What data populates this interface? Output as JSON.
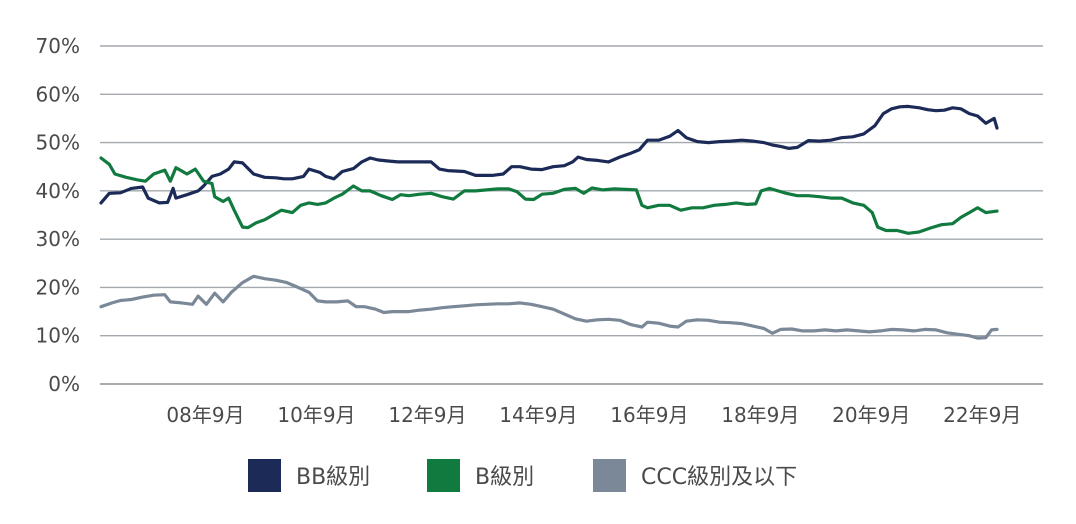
{
  "chart_data": {
    "type": "line",
    "title": "",
    "xlabel": "",
    "ylabel": "",
    "ylim": [
      0,
      70
    ],
    "xlim": [
      2006.75,
      2022.9
    ],
    "y_ticks": [
      "0%",
      "10%",
      "20%",
      "30%",
      "40%",
      "50%",
      "60%",
      "70%"
    ],
    "x_ticks": [
      {
        "label": "08年9月",
        "x": 2008.67
      },
      {
        "label": "10年9月",
        "x": 2010.67
      },
      {
        "label": "12年9月",
        "x": 2012.67
      },
      {
        "label": "14年9月",
        "x": 2014.67
      },
      {
        "label": "16年9月",
        "x": 2016.67
      },
      {
        "label": "18年9月",
        "x": 2018.67
      },
      {
        "label": "20年9月",
        "x": 2020.67
      },
      {
        "label": "22年9月",
        "x": 2022.67
      }
    ],
    "grid": true,
    "legend_position": "bottom",
    "series": [
      {
        "name": "BB級別",
        "color": "#1b2a56",
        "points": [
          [
            2006.75,
            37.5
          ],
          [
            2006.9,
            39.5
          ],
          [
            2007.1,
            39.6
          ],
          [
            2007.3,
            40.5
          ],
          [
            2007.5,
            40.8
          ],
          [
            2007.6,
            38.5
          ],
          [
            2007.8,
            37.5
          ],
          [
            2007.95,
            37.6
          ],
          [
            2008.05,
            40.5
          ],
          [
            2008.1,
            38.5
          ],
          [
            2008.3,
            39.2
          ],
          [
            2008.5,
            40
          ],
          [
            2008.6,
            41
          ],
          [
            2008.75,
            43
          ],
          [
            2008.9,
            43.5
          ],
          [
            2009.05,
            44.5
          ],
          [
            2009.15,
            46
          ],
          [
            2009.3,
            45.8
          ],
          [
            2009.5,
            43.5
          ],
          [
            2009.7,
            42.8
          ],
          [
            2009.9,
            42.7
          ],
          [
            2010.05,
            42.5
          ],
          [
            2010.2,
            42.5
          ],
          [
            2010.4,
            43
          ],
          [
            2010.5,
            44.5
          ],
          [
            2010.7,
            43.8
          ],
          [
            2010.8,
            43
          ],
          [
            2010.95,
            42.5
          ],
          [
            2011.1,
            44
          ],
          [
            2011.3,
            44.6
          ],
          [
            2011.45,
            46
          ],
          [
            2011.6,
            46.8
          ],
          [
            2011.75,
            46.4
          ],
          [
            2011.9,
            46.2
          ],
          [
            2012.1,
            46
          ],
          [
            2012.3,
            46
          ],
          [
            2012.5,
            46
          ],
          [
            2012.7,
            46
          ],
          [
            2012.85,
            44.5
          ],
          [
            2013.0,
            44.2
          ],
          [
            2013.3,
            44
          ],
          [
            2013.5,
            43.2
          ],
          [
            2013.8,
            43.2
          ],
          [
            2014.0,
            43.5
          ],
          [
            2014.15,
            45
          ],
          [
            2014.3,
            45
          ],
          [
            2014.5,
            44.5
          ],
          [
            2014.7,
            44.4
          ],
          [
            2014.9,
            45
          ],
          [
            2015.1,
            45.2
          ],
          [
            2015.25,
            46
          ],
          [
            2015.35,
            47
          ],
          [
            2015.5,
            46.5
          ],
          [
            2015.7,
            46.3
          ],
          [
            2015.9,
            46
          ],
          [
            2016.1,
            47
          ],
          [
            2016.3,
            47.8
          ],
          [
            2016.45,
            48.5
          ],
          [
            2016.6,
            50.5
          ],
          [
            2016.8,
            50.5
          ],
          [
            2017.0,
            51.3
          ],
          [
            2017.15,
            52.5
          ],
          [
            2017.3,
            51
          ],
          [
            2017.5,
            50.2
          ],
          [
            2017.7,
            50
          ],
          [
            2017.9,
            50.2
          ],
          [
            2018.1,
            50.3
          ],
          [
            2018.3,
            50.5
          ],
          [
            2018.5,
            50.3
          ],
          [
            2018.7,
            50
          ],
          [
            2018.85,
            49.5
          ],
          [
            2019.0,
            49.2
          ],
          [
            2019.15,
            48.8
          ],
          [
            2019.3,
            49
          ],
          [
            2019.5,
            50.4
          ],
          [
            2019.7,
            50.3
          ],
          [
            2019.9,
            50.5
          ],
          [
            2020.1,
            51
          ],
          [
            2020.3,
            51.2
          ],
          [
            2020.5,
            51.8
          ],
          [
            2020.7,
            53.5
          ],
          [
            2020.85,
            56
          ],
          [
            2021.0,
            57
          ],
          [
            2021.15,
            57.4
          ],
          [
            2021.3,
            57.5
          ],
          [
            2021.5,
            57.2
          ],
          [
            2021.65,
            56.8
          ],
          [
            2021.8,
            56.6
          ],
          [
            2021.95,
            56.7
          ],
          [
            2022.1,
            57.2
          ],
          [
            2022.25,
            57
          ],
          [
            2022.4,
            56
          ],
          [
            2022.55,
            55.5
          ],
          [
            2022.7,
            54
          ],
          [
            2022.85,
            55
          ],
          [
            2022.9,
            53
          ]
        ]
      },
      {
        "name": "B級別",
        "color": "#117a3e",
        "points": [
          [
            2006.75,
            46.8
          ],
          [
            2006.9,
            45.5
          ],
          [
            2007.0,
            43.5
          ],
          [
            2007.2,
            42.8
          ],
          [
            2007.4,
            42.3
          ],
          [
            2007.55,
            42
          ],
          [
            2007.7,
            43.5
          ],
          [
            2007.9,
            44.3
          ],
          [
            2008.0,
            42
          ],
          [
            2008.1,
            44.8
          ],
          [
            2008.3,
            43.5
          ],
          [
            2008.45,
            44.5
          ],
          [
            2008.6,
            42
          ],
          [
            2008.75,
            41.5
          ],
          [
            2008.8,
            38.8
          ],
          [
            2008.95,
            37.8
          ],
          [
            2009.05,
            38.5
          ],
          [
            2009.15,
            36
          ],
          [
            2009.3,
            32.5
          ],
          [
            2009.4,
            32.4
          ],
          [
            2009.55,
            33.4
          ],
          [
            2009.7,
            34
          ],
          [
            2009.85,
            35
          ],
          [
            2010.0,
            36
          ],
          [
            2010.2,
            35.5
          ],
          [
            2010.35,
            37
          ],
          [
            2010.5,
            37.5
          ],
          [
            2010.65,
            37.2
          ],
          [
            2010.8,
            37.5
          ],
          [
            2010.95,
            38.5
          ],
          [
            2011.1,
            39.3
          ],
          [
            2011.3,
            41
          ],
          [
            2011.45,
            40
          ],
          [
            2011.6,
            40
          ],
          [
            2011.8,
            39
          ],
          [
            2012.0,
            38.2
          ],
          [
            2012.15,
            39.2
          ],
          [
            2012.3,
            39
          ],
          [
            2012.5,
            39.3
          ],
          [
            2012.7,
            39.5
          ],
          [
            2012.9,
            38.8
          ],
          [
            2013.1,
            38.3
          ],
          [
            2013.3,
            40
          ],
          [
            2013.5,
            40
          ],
          [
            2013.7,
            40.2
          ],
          [
            2013.9,
            40.4
          ],
          [
            2014.1,
            40.4
          ],
          [
            2014.25,
            39.8
          ],
          [
            2014.4,
            38.3
          ],
          [
            2014.55,
            38.2
          ],
          [
            2014.7,
            39.3
          ],
          [
            2014.9,
            39.5
          ],
          [
            2015.1,
            40.3
          ],
          [
            2015.3,
            40.5
          ],
          [
            2015.45,
            39.5
          ],
          [
            2015.6,
            40.6
          ],
          [
            2015.8,
            40.2
          ],
          [
            2016.0,
            40.4
          ],
          [
            2016.2,
            40.3
          ],
          [
            2016.4,
            40.2
          ],
          [
            2016.5,
            37
          ],
          [
            2016.6,
            36.5
          ],
          [
            2016.8,
            37
          ],
          [
            2017.0,
            37
          ],
          [
            2017.2,
            36
          ],
          [
            2017.4,
            36.5
          ],
          [
            2017.6,
            36.5
          ],
          [
            2017.8,
            37
          ],
          [
            2018.0,
            37.2
          ],
          [
            2018.2,
            37.5
          ],
          [
            2018.4,
            37.2
          ],
          [
            2018.55,
            37.3
          ],
          [
            2018.65,
            40
          ],
          [
            2018.8,
            40.5
          ],
          [
            2018.95,
            40
          ],
          [
            2019.1,
            39.5
          ],
          [
            2019.3,
            39
          ],
          [
            2019.5,
            39
          ],
          [
            2019.7,
            38.8
          ],
          [
            2019.9,
            38.5
          ],
          [
            2020.1,
            38.5
          ],
          [
            2020.3,
            37.5
          ],
          [
            2020.5,
            37
          ],
          [
            2020.65,
            35.5
          ],
          [
            2020.75,
            32.5
          ],
          [
            2020.9,
            31.8
          ],
          [
            2021.1,
            31.8
          ],
          [
            2021.3,
            31.2
          ],
          [
            2021.5,
            31.5
          ],
          [
            2021.7,
            32.3
          ],
          [
            2021.9,
            33
          ],
          [
            2022.1,
            33.2
          ],
          [
            2022.25,
            34.5
          ],
          [
            2022.4,
            35.5
          ],
          [
            2022.55,
            36.5
          ],
          [
            2022.7,
            35.5
          ],
          [
            2022.9,
            35.8
          ]
        ]
      },
      {
        "name": "CCC級別及以下",
        "color": "#7b8898",
        "points": [
          [
            2006.75,
            16
          ],
          [
            2006.95,
            16.8
          ],
          [
            2007.1,
            17.3
          ],
          [
            2007.3,
            17.5
          ],
          [
            2007.5,
            18
          ],
          [
            2007.7,
            18.4
          ],
          [
            2007.9,
            18.5
          ],
          [
            2008.0,
            17
          ],
          [
            2008.2,
            16.8
          ],
          [
            2008.4,
            16.5
          ],
          [
            2008.5,
            18.2
          ],
          [
            2008.65,
            16.5
          ],
          [
            2008.8,
            18.8
          ],
          [
            2008.95,
            17
          ],
          [
            2009.1,
            19
          ],
          [
            2009.3,
            21
          ],
          [
            2009.5,
            22.3
          ],
          [
            2009.7,
            21.8
          ],
          [
            2009.9,
            21.5
          ],
          [
            2010.1,
            21
          ],
          [
            2010.3,
            20
          ],
          [
            2010.5,
            19
          ],
          [
            2010.65,
            17.2
          ],
          [
            2010.8,
            17
          ],
          [
            2011.0,
            17
          ],
          [
            2011.2,
            17.2
          ],
          [
            2011.35,
            16
          ],
          [
            2011.5,
            16
          ],
          [
            2011.7,
            15.5
          ],
          [
            2011.85,
            14.8
          ],
          [
            2012.0,
            15
          ],
          [
            2012.3,
            15
          ],
          [
            2012.5,
            15.3
          ],
          [
            2012.7,
            15.5
          ],
          [
            2012.9,
            15.8
          ],
          [
            2013.1,
            16
          ],
          [
            2013.3,
            16.2
          ],
          [
            2013.5,
            16.4
          ],
          [
            2013.7,
            16.5
          ],
          [
            2013.9,
            16.6
          ],
          [
            2014.1,
            16.6
          ],
          [
            2014.3,
            16.8
          ],
          [
            2014.5,
            16.5
          ],
          [
            2014.7,
            16
          ],
          [
            2014.9,
            15.5
          ],
          [
            2015.1,
            14.5
          ],
          [
            2015.3,
            13.5
          ],
          [
            2015.5,
            13
          ],
          [
            2015.7,
            13.3
          ],
          [
            2015.9,
            13.4
          ],
          [
            2016.1,
            13.2
          ],
          [
            2016.3,
            12.3
          ],
          [
            2016.5,
            11.8
          ],
          [
            2016.6,
            12.8
          ],
          [
            2016.8,
            12.6
          ],
          [
            2017.0,
            12
          ],
          [
            2017.15,
            11.8
          ],
          [
            2017.3,
            13
          ],
          [
            2017.5,
            13.3
          ],
          [
            2017.7,
            13.2
          ],
          [
            2017.9,
            12.8
          ],
          [
            2018.1,
            12.7
          ],
          [
            2018.3,
            12.5
          ],
          [
            2018.5,
            12
          ],
          [
            2018.7,
            11.5
          ],
          [
            2018.85,
            10.5
          ],
          [
            2019.0,
            11.3
          ],
          [
            2019.2,
            11.4
          ],
          [
            2019.4,
            11
          ],
          [
            2019.6,
            11
          ],
          [
            2019.8,
            11.2
          ],
          [
            2020.0,
            11
          ],
          [
            2020.2,
            11.2
          ],
          [
            2020.4,
            11
          ],
          [
            2020.6,
            10.8
          ],
          [
            2020.8,
            11
          ],
          [
            2021.0,
            11.3
          ],
          [
            2021.2,
            11.2
          ],
          [
            2021.4,
            11
          ],
          [
            2021.6,
            11.3
          ],
          [
            2021.8,
            11.2
          ],
          [
            2022.0,
            10.6
          ],
          [
            2022.2,
            10.3
          ],
          [
            2022.4,
            10
          ],
          [
            2022.55,
            9.5
          ],
          [
            2022.7,
            9.6
          ],
          [
            2022.8,
            11.2
          ],
          [
            2022.9,
            11.3
          ]
        ]
      }
    ]
  }
}
